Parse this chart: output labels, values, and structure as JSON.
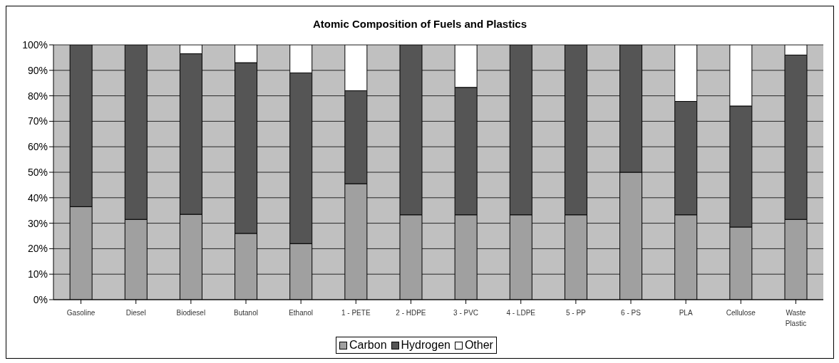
{
  "chart_data": {
    "type": "bar",
    "title": "Atomic Composition of Fuels and Plastics",
    "stacked": true,
    "categories": [
      "Gasoline",
      "Diesel",
      "Biodiesel",
      "Butanol",
      "Ethanol",
      "1 - PETE",
      "2 - HDPE",
      "3 - PVC",
      "4 - LDPE",
      "5 - PP",
      "6 - PS",
      "PLA",
      "Cellulose",
      "Waste Plastic"
    ],
    "series": [
      {
        "name": "Carbon",
        "color": "#a0a0a0",
        "values": [
          36.5,
          31.5,
          33.5,
          26,
          22,
          45.5,
          33.3,
          33.3,
          33.3,
          33.3,
          50,
          33.3,
          28.5,
          31.5
        ]
      },
      {
        "name": "Hydrogen",
        "color": "#555555",
        "values": [
          63.5,
          68.5,
          63,
          67,
          67,
          36.5,
          66.7,
          50,
          66.7,
          66.7,
          50,
          44.5,
          47.5,
          64.5
        ]
      },
      {
        "name": "Other",
        "color": "#ffffff",
        "values": [
          0,
          0,
          3.5,
          7,
          11,
          18,
          0,
          16.7,
          0,
          0,
          0,
          22.2,
          24,
          4
        ]
      }
    ],
    "ylim": [
      0,
      100
    ],
    "yticks": [
      {
        "value": 0,
        "label": "0%"
      },
      {
        "value": 10,
        "label": "10%"
      },
      {
        "value": 20,
        "label": "20%"
      },
      {
        "value": 30,
        "label": "30%"
      },
      {
        "value": 40,
        "label": "40%"
      },
      {
        "value": 50,
        "label": "50%"
      },
      {
        "value": 60,
        "label": "60%"
      },
      {
        "value": 70,
        "label": "70%"
      },
      {
        "value": 80,
        "label": "80%"
      },
      {
        "value": 90,
        "label": "90%"
      },
      {
        "value": 100,
        "label": "100%"
      }
    ],
    "grid": "y",
    "legend": "bottom"
  }
}
